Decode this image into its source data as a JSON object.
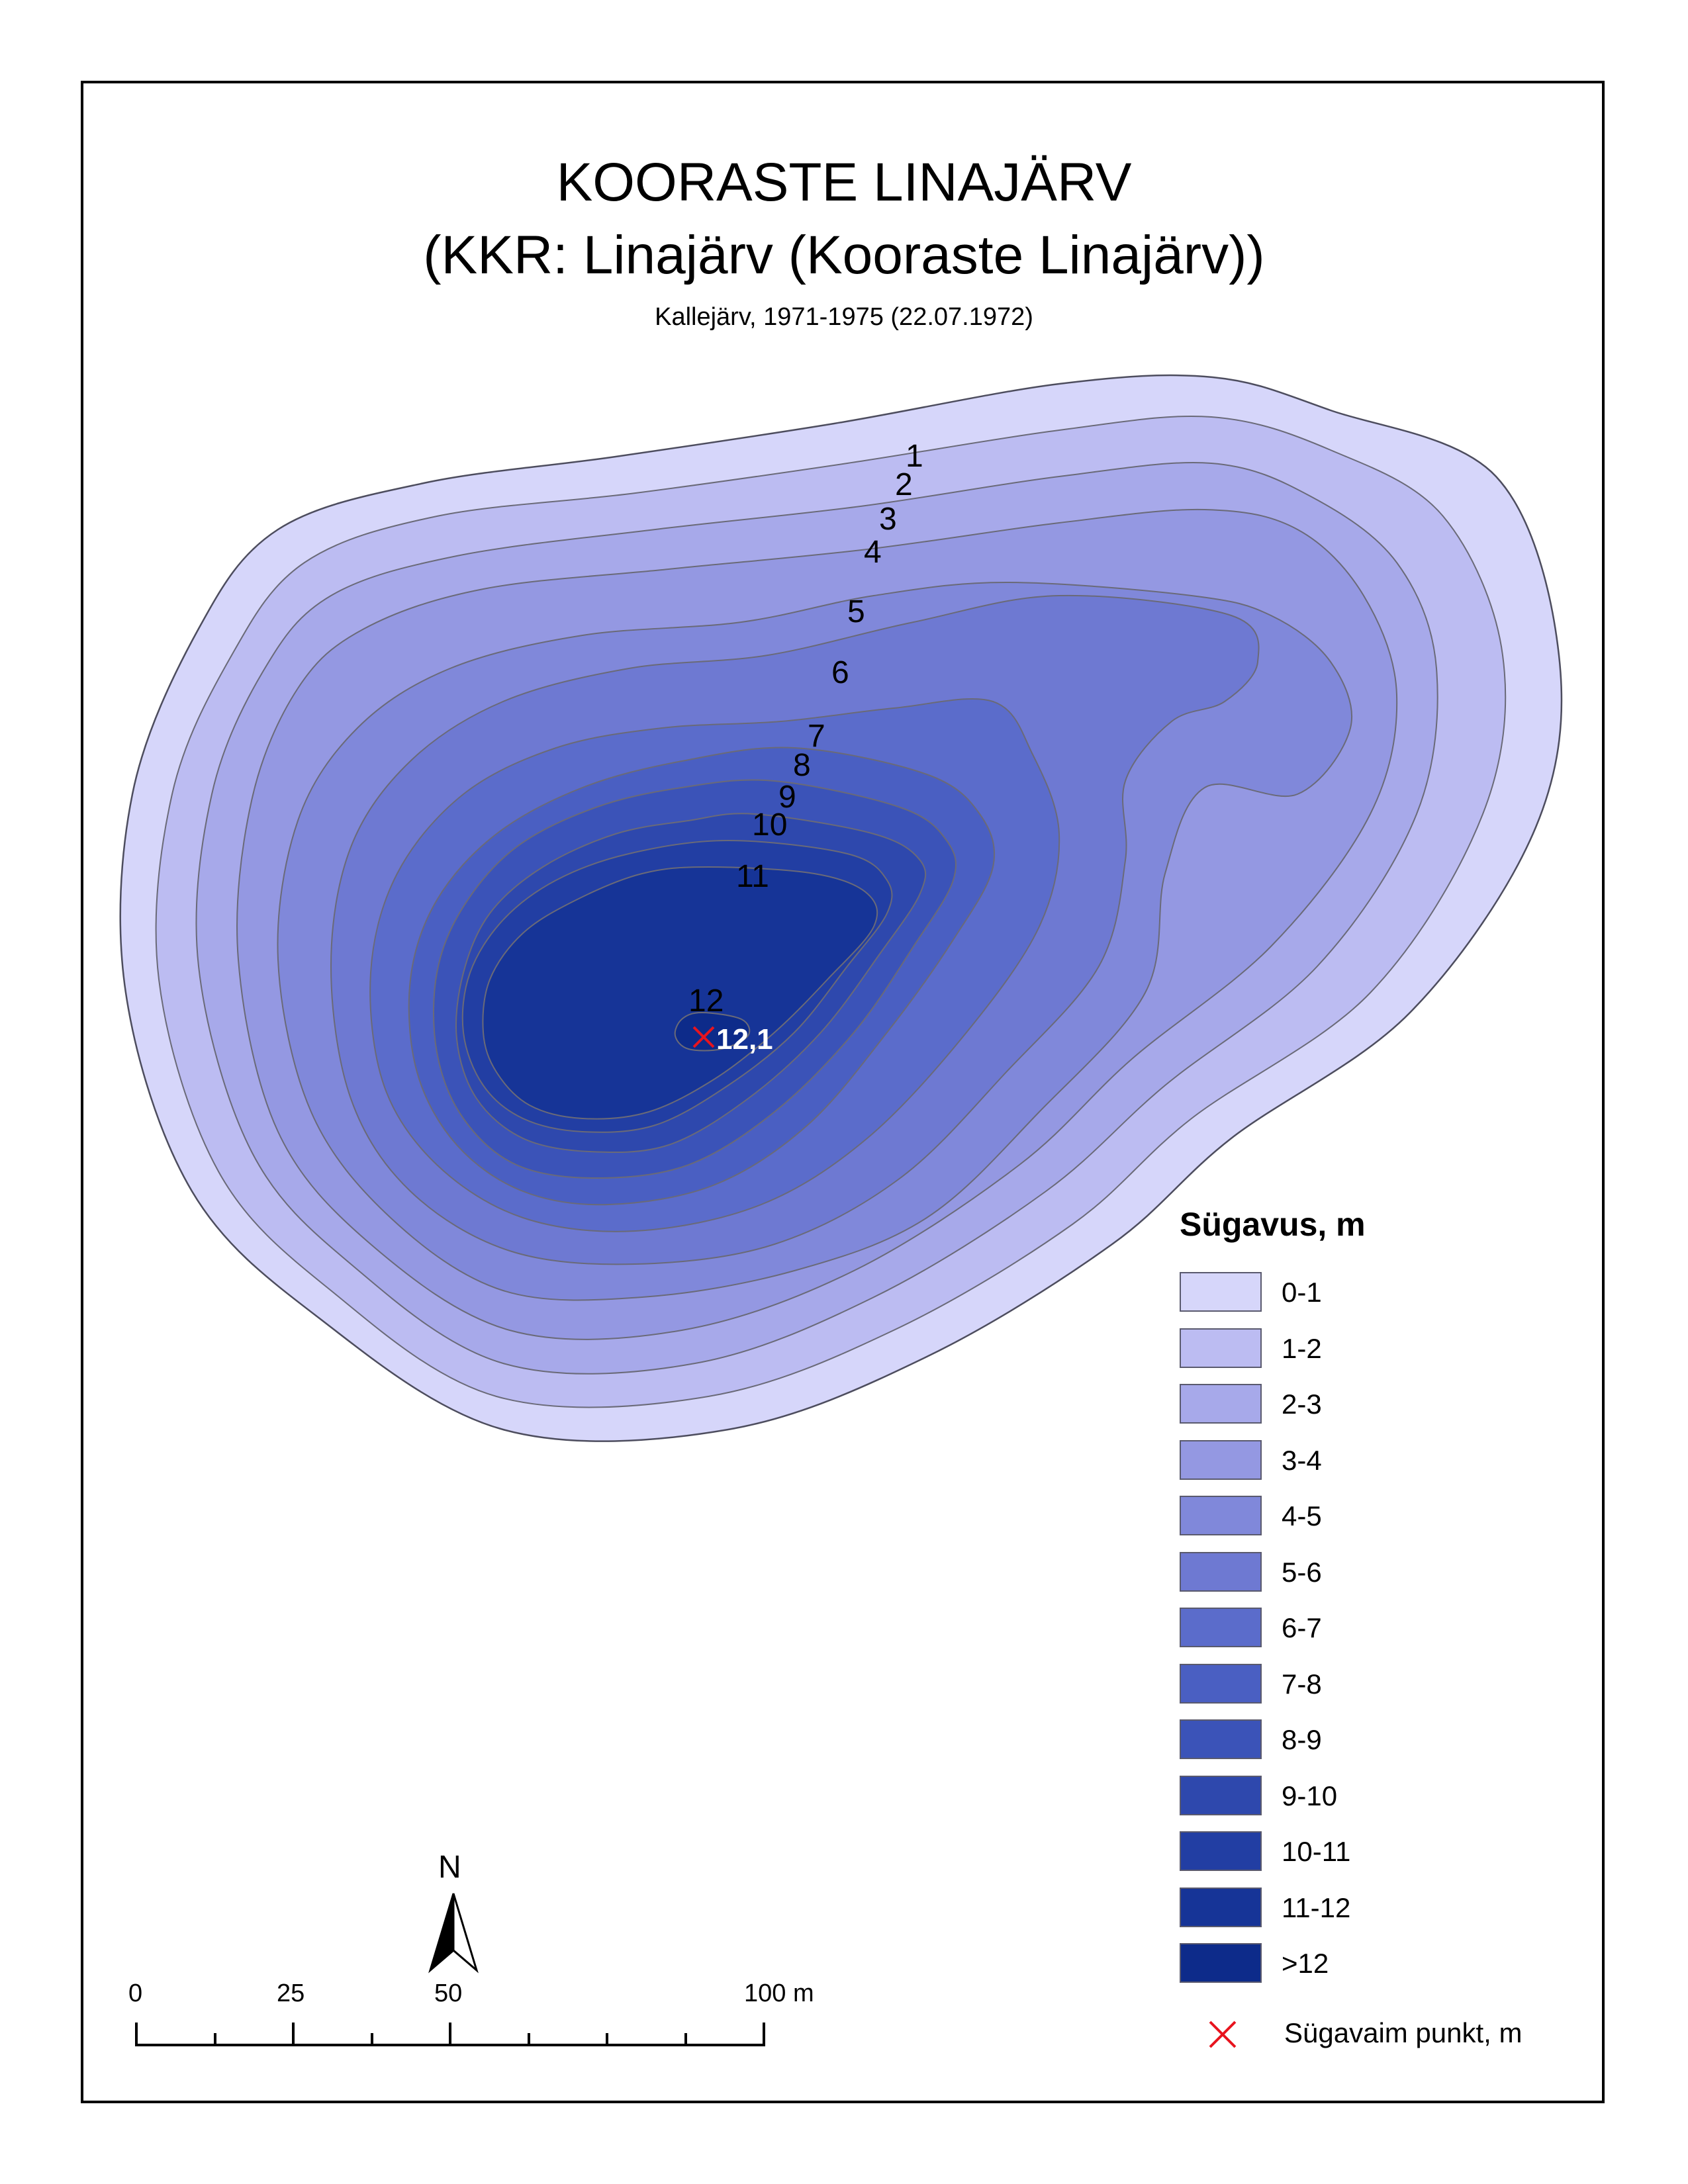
{
  "title": "KOORASTE LINAJÄRV",
  "subtitle": "(KKR: Linajärv (Kooraste Linajärv))",
  "source": "Kallejärv, 1971-1975 (22.07.1972)",
  "contour_labels": [
    "1",
    "2",
    "3",
    "4",
    "5",
    "6",
    "7",
    "8",
    "9",
    "10",
    "11",
    "12"
  ],
  "deepest_point": {
    "label": "12,1",
    "marker_color": "#e8141e"
  },
  "legend": {
    "title": "Sügavus, m",
    "classes": [
      {
        "label": "0-1",
        "color": "#d6d6fa"
      },
      {
        "label": "1-2",
        "color": "#bcbcf2"
      },
      {
        "label": "2-3",
        "color": "#a7a9ea"
      },
      {
        "label": "3-4",
        "color": "#9498e2"
      },
      {
        "label": "4-5",
        "color": "#8088da"
      },
      {
        "label": "5-6",
        "color": "#6e79d2"
      },
      {
        "label": "6-7",
        "color": "#5b6ccb"
      },
      {
        "label": "7-8",
        "color": "#4a5fc2"
      },
      {
        "label": "8-9",
        "color": "#3b53b8"
      },
      {
        "label": "9-10",
        "color": "#2e48ad"
      },
      {
        "label": "10-11",
        "color": "#223ea3"
      },
      {
        "label": "11-12",
        "color": "#163497"
      },
      {
        "label": ">12",
        "color": "#0d2b8a"
      }
    ],
    "deepest_label": "Sügavaim punkt, m"
  },
  "north_arrow": {
    "letter": "N",
    "icon": "north-arrow-icon"
  },
  "scale_bar": {
    "labels": [
      "0",
      "25",
      "50",
      "100 m"
    ]
  }
}
